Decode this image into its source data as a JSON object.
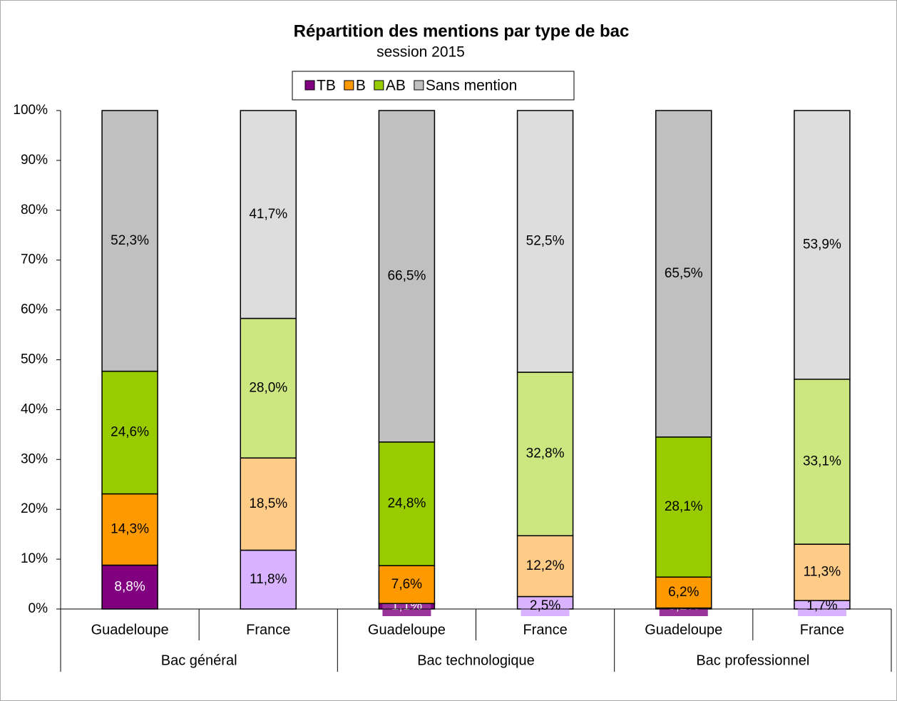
{
  "chart_data": {
    "type": "stacked_bar",
    "title": "Répartition des mentions par type de bac",
    "subtitle": "session 2015",
    "categories": [
      "Guadeloupe",
      "France",
      "Guadeloupe",
      "France",
      "Guadeloupe",
      "France"
    ],
    "groups": [
      "Bac général",
      "Bac technologique",
      "Bac professionnel"
    ],
    "ylim": [
      0,
      100
    ],
    "yticks": [
      {
        "value": 0,
        "label": "0%"
      },
      {
        "value": 10,
        "label": "10%"
      },
      {
        "value": 20,
        "label": "20%"
      },
      {
        "value": 30,
        "label": "30%"
      },
      {
        "value": 40,
        "label": "40%"
      },
      {
        "value": 50,
        "label": "50%"
      },
      {
        "value": 60,
        "label": "60%"
      },
      {
        "value": 70,
        "label": "70%"
      },
      {
        "value": 80,
        "label": "80%"
      },
      {
        "value": 90,
        "label": "90%"
      },
      {
        "value": 100,
        "label": "100%"
      }
    ],
    "legend": "top",
    "series": [
      {
        "name": "TB",
        "color": "#800080",
        "colors": [
          "#800080",
          "#d9b3ff",
          "#800080",
          "#d9b3ff",
          "#800080",
          "#d9b3ff"
        ],
        "values": [
          8.8,
          11.8,
          1.1,
          2.5,
          0.2,
          1.7
        ],
        "value_labels": [
          "8,8%",
          "11,8%",
          "1,1%",
          "2,5%",
          "0,2%",
          "1,7%"
        ]
      },
      {
        "name": "B",
        "color": "#ff9900",
        "colors": [
          "#ff9900",
          "#ffcc88",
          "#ff9900",
          "#ffcc88",
          "#ff9900",
          "#ffcc88"
        ],
        "values": [
          14.3,
          18.5,
          7.6,
          12.2,
          6.2,
          11.3
        ],
        "value_labels": [
          "14,3%",
          "18,5%",
          "7,6%",
          "12,2%",
          "6,2%",
          "11,3%"
        ]
      },
      {
        "name": "AB",
        "color": "#99cc00",
        "colors": [
          "#99cc00",
          "#cce680",
          "#99cc00",
          "#cce680",
          "#99cc00",
          "#cce680"
        ],
        "values": [
          24.6,
          28.0,
          24.8,
          32.8,
          28.1,
          33.1
        ],
        "value_labels": [
          "24,6%",
          "28,0%",
          "24,8%",
          "32,8%",
          "28,1%",
          "33,1%"
        ]
      },
      {
        "name": "Sans mention",
        "color": "#c0c0c0",
        "colors": [
          "#c0c0c0",
          "#dddddd",
          "#c0c0c0",
          "#dddddd",
          "#c0c0c0",
          "#dddddd"
        ],
        "values": [
          52.3,
          41.7,
          66.5,
          52.5,
          65.5,
          53.9
        ],
        "value_labels": [
          "52,3%",
          "41,7%",
          "66,5%",
          "52,5%",
          "65,5%",
          "53,9%"
        ]
      }
    ]
  }
}
